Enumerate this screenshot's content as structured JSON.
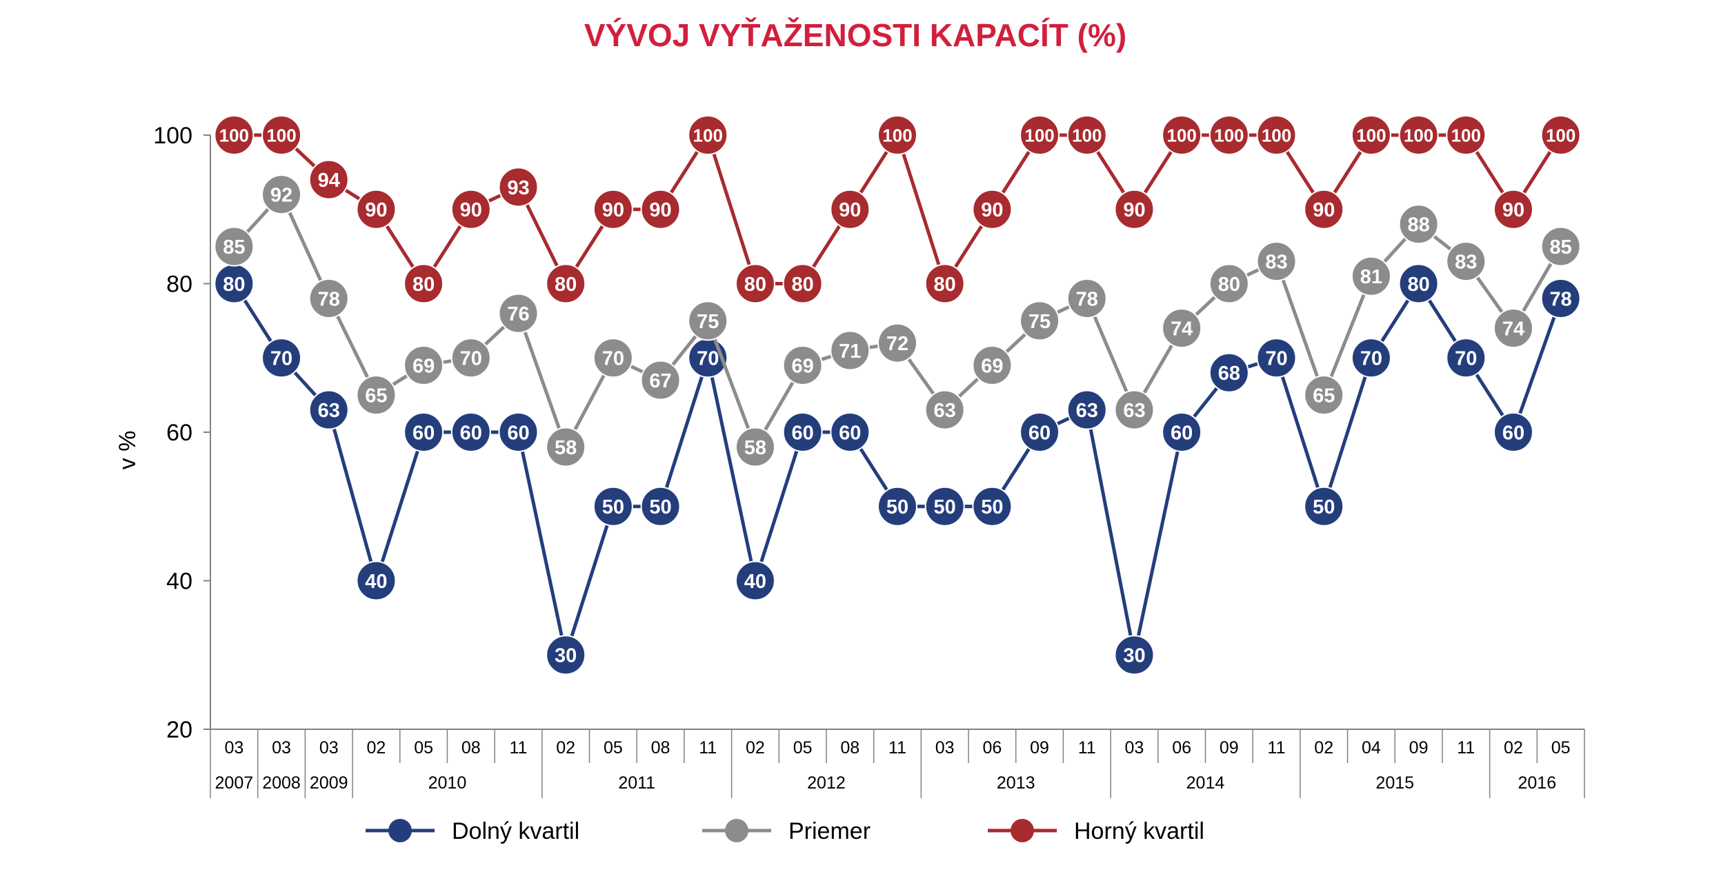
{
  "chart_data": {
    "type": "line",
    "title": "VÝVOJ VYŤAŽENOSTI KAPACÍT (%)",
    "ylabel": "v %",
    "xlabel": "",
    "ylim": [
      20,
      100
    ],
    "yticks": [
      20,
      40,
      60,
      80,
      100
    ],
    "grid": false,
    "legend_position": "bottom",
    "categories": [
      "03",
      "03",
      "03",
      "02",
      "05",
      "08",
      "11",
      "02",
      "05",
      "08",
      "11",
      "02",
      "05",
      "08",
      "11",
      "03",
      "06",
      "09",
      "11",
      "03",
      "06",
      "09",
      "11",
      "02",
      "04",
      "09",
      "11",
      "02",
      "05"
    ],
    "year_groups": [
      {
        "label": "2007",
        "span": 1
      },
      {
        "label": "2008",
        "span": 1
      },
      {
        "label": "2009",
        "span": 1
      },
      {
        "label": "2010",
        "span": 4
      },
      {
        "label": "2011",
        "span": 4
      },
      {
        "label": "2012",
        "span": 4
      },
      {
        "label": "2013",
        "span": 4
      },
      {
        "label": "2014",
        "span": 4
      },
      {
        "label": "2015",
        "span": 4
      },
      {
        "label": "2016",
        "span": 2
      }
    ],
    "series": [
      {
        "name": "Dolný kvartil",
        "color": "#243e7c",
        "values": [
          80,
          70,
          63,
          40,
          60,
          60,
          60,
          30,
          50,
          50,
          70,
          40,
          60,
          60,
          50,
          50,
          50,
          60,
          63,
          30,
          60,
          68,
          70,
          50,
          70,
          80,
          70,
          60,
          78
        ]
      },
      {
        "name": "Priemer",
        "color": "#8c8c8c",
        "values": [
          85,
          92,
          78,
          65,
          69,
          70,
          76,
          58,
          70,
          67,
          75,
          58,
          69,
          71,
          72,
          63,
          69,
          75,
          78,
          63,
          74,
          80,
          83,
          65,
          81,
          88,
          83,
          74,
          85
        ]
      },
      {
        "name": "Horný kvartil",
        "color": "#a72b2f",
        "values": [
          100,
          100,
          94,
          90,
          80,
          90,
          93,
          80,
          90,
          90,
          100,
          80,
          80,
          90,
          100,
          80,
          90,
          100,
          100,
          90,
          100,
          100,
          100,
          90,
          100,
          100,
          100,
          90,
          100
        ]
      }
    ]
  },
  "colors": {
    "title": "#d21f3c",
    "axis": "#808080"
  }
}
